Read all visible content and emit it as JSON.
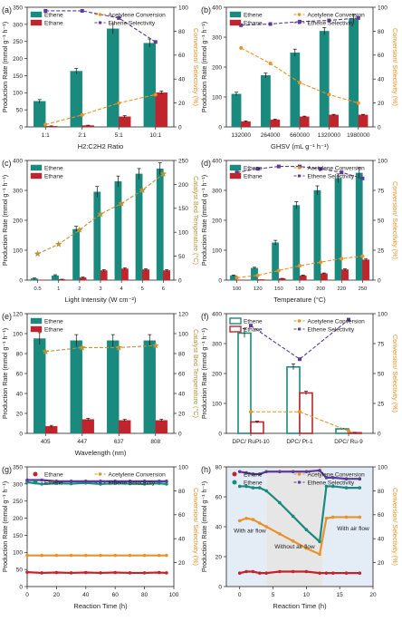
{
  "figure": {
    "colors": {
      "ethene": "#1a8a7e",
      "ethane": "#c0242c",
      "conversion": "#e8922a",
      "selectivity": "#5a3a9a",
      "temp": "#b8943c"
    }
  },
  "chart_data": [
    {
      "id": "a",
      "panel_label": "(a)",
      "type": "bar",
      "categories": [
        "1:1",
        "2:1",
        "5:1",
        "10:1"
      ],
      "xlabel": "H2:C2H2 Ratio",
      "ylabel": "Production Rate (mmol g⁻¹ h⁻¹)",
      "ylabel_right": "Conversion/ Selectivity (%)",
      "right_color": "#e8922a",
      "ylim": [
        0,
        350
      ],
      "yticks": [
        0,
        50,
        100,
        150,
        200,
        250,
        300,
        350
      ],
      "y2lim": [
        0,
        100
      ],
      "y2ticks": [
        0,
        20,
        40,
        60,
        80,
        100
      ],
      "legend": {
        "bars": [
          "Ethene",
          "Ethane"
        ],
        "lines": [
          "Acetylene Conversion",
          "Ethene Selectivity"
        ]
      },
      "series": [
        {
          "name": "Ethene",
          "kind": "bar",
          "values": [
            75,
            163,
            287,
            245
          ],
          "err": [
            5,
            8,
            15,
            12
          ]
        },
        {
          "name": "Ethane",
          "kind": "bar",
          "values": [
            2,
            4,
            30,
            100
          ],
          "err": [
            1,
            1,
            3,
            5
          ]
        },
        {
          "name": "Acetylene Conversion",
          "kind": "line",
          "axis": "right",
          "values": [
            2,
            10,
            20,
            27
          ]
        },
        {
          "name": "Ethene Selectivity",
          "kind": "line",
          "axis": "right",
          "values": [
            97,
            97,
            91,
            71
          ]
        }
      ]
    },
    {
      "id": "b",
      "panel_label": "(b)",
      "type": "bar",
      "categories": [
        "132000",
        "264000",
        "660000",
        "1320000",
        "1980000"
      ],
      "xlabel": "GHSV (mL g⁻¹ h⁻¹)",
      "ylabel": "Production Rate (mmol g⁻¹ h⁻¹)",
      "ylabel_right": "Conversion/ Selectivity (%)",
      "right_color": "#e8922a",
      "ylim": [
        0,
        400
      ],
      "yticks": [
        0,
        100,
        200,
        300,
        400
      ],
      "y2lim": [
        0,
        100
      ],
      "y2ticks": [
        0,
        20,
        40,
        60,
        80,
        100
      ],
      "legend": {
        "bars": [
          "Ethene",
          "Ethane"
        ],
        "lines": [
          "Acetylene Conversion",
          "Ethene Selectivity"
        ]
      },
      "series": [
        {
          "name": "Ethene",
          "kind": "bar",
          "values": [
            110,
            172,
            248,
            320,
            362
          ],
          "err": [
            6,
            8,
            12,
            12,
            14
          ]
        },
        {
          "name": "Ethane",
          "kind": "bar",
          "values": [
            18,
            24,
            34,
            40,
            40
          ],
          "err": [
            2,
            2,
            2,
            2,
            2
          ]
        },
        {
          "name": "Acetylene Conversion",
          "kind": "line",
          "axis": "right",
          "values": [
            66,
            53,
            37,
            27,
            20
          ]
        },
        {
          "name": "Ethene Selectivity",
          "kind": "line",
          "axis": "right",
          "values": [
            85,
            86,
            88,
            89,
            91
          ]
        }
      ]
    },
    {
      "id": "c",
      "panel_label": "(c)",
      "type": "bar",
      "categories": [
        "0.5",
        "1",
        "2",
        "3",
        "4",
        "5",
        "6"
      ],
      "xlabel": "Light Intensity (W cm⁻²)",
      "ylabel": "Production Rate (mmol g⁻¹ h⁻¹)",
      "ylabel_right": "Catalyst Bed Temperature (°C)",
      "right_color": "#b8943c",
      "ylim": [
        0,
        400
      ],
      "yticks": [
        0,
        100,
        200,
        300,
        400
      ],
      "y2lim": [
        0,
        250
      ],
      "y2ticks": [
        0,
        50,
        100,
        150,
        200,
        250
      ],
      "legend": {
        "bars": [
          "Ethene",
          "Ethane"
        ],
        "lines": []
      },
      "series": [
        {
          "name": "Ethene",
          "kind": "bar",
          "values": [
            5,
            15,
            170,
            295,
            330,
            355,
            372
          ],
          "err": [
            2,
            3,
            10,
            18,
            18,
            18,
            20
          ]
        },
        {
          "name": "Ethane",
          "kind": "bar",
          "values": [
            1,
            2,
            8,
            32,
            38,
            35,
            32
          ],
          "err": [
            0,
            1,
            2,
            3,
            3,
            3,
            3
          ]
        },
        {
          "name": "Catalyst Bed Temperature",
          "kind": "line",
          "axis": "right",
          "marker": "star",
          "values": [
            55,
            75,
            105,
            138,
            160,
            188,
            222
          ]
        }
      ]
    },
    {
      "id": "d",
      "panel_label": "(d)",
      "type": "bar",
      "categories": [
        "100",
        "120",
        "150",
        "180",
        "200",
        "220",
        "250"
      ],
      "xlabel": "Temperature (°C)",
      "ylabel": "Production Rate (mmol g⁻¹ h⁻¹)",
      "ylabel_right": "Conversion/ Selectivity (%)",
      "right_color": "#e8922a",
      "ylim": [
        0,
        400
      ],
      "yticks": [
        0,
        100,
        200,
        300,
        400
      ],
      "y2lim": [
        0,
        100
      ],
      "y2ticks": [
        0,
        25,
        50,
        75,
        100
      ],
      "legend": {
        "bars": [
          "Ethene",
          "Ethane"
        ],
        "lines": [
          "Acetylene Conversion",
          "Ethene Selectivity"
        ]
      },
      "series": [
        {
          "name": "Ethene",
          "kind": "bar",
          "values": [
            15,
            40,
            125,
            250,
            300,
            340,
            358
          ],
          "err": [
            2,
            3,
            8,
            12,
            15,
            15,
            18
          ]
        },
        {
          "name": "Ethane",
          "kind": "bar",
          "values": [
            1,
            2,
            5,
            15,
            22,
            35,
            68
          ],
          "err": [
            0,
            0,
            1,
            2,
            2,
            3,
            4
          ]
        },
        {
          "name": "Acetylene Conversion",
          "kind": "line",
          "axis": "right",
          "values": [
            2,
            4,
            8,
            12,
            15,
            18,
            20
          ]
        },
        {
          "name": "Ethene Selectivity",
          "kind": "line",
          "axis": "right",
          "values": [
            90,
            93,
            95,
            95,
            93,
            90,
            85
          ]
        }
      ]
    },
    {
      "id": "e",
      "panel_label": "(e)",
      "type": "bar",
      "categories": [
        "405",
        "447",
        "637",
        "808"
      ],
      "xlabel": "Wavelength (nm)",
      "ylabel": "Production Rate (mmol g⁻¹ h⁻¹)",
      "ylabel_right": "Catalyst Bed Temperature (°C)",
      "right_color": "#b8943c",
      "ylim": [
        0,
        120
      ],
      "yticks": [
        0,
        20,
        40,
        60,
        80,
        100,
        120
      ],
      "y2lim": [
        0,
        120
      ],
      "y2ticks": [
        0,
        20,
        40,
        60,
        80,
        100,
        120
      ],
      "legend": {
        "bars": [
          "Ethene",
          "Ethane"
        ],
        "lines": []
      },
      "series": [
        {
          "name": "Ethene",
          "kind": "bar",
          "values": [
            95,
            93,
            93,
            93
          ],
          "err": [
            6,
            6,
            6,
            6
          ]
        },
        {
          "name": "Ethane",
          "kind": "bar",
          "values": [
            7,
            14,
            13,
            13
          ],
          "err": [
            1,
            1,
            1,
            1
          ]
        },
        {
          "name": "Catalyst Bed Temperature",
          "kind": "line",
          "axis": "right",
          "marker": "star",
          "values": [
            82,
            86,
            86,
            88
          ]
        }
      ]
    },
    {
      "id": "f",
      "panel_label": "(f)",
      "type": "bar",
      "categories": [
        "DPC/ RuPt-10",
        "DPC/ Pt-1",
        "DPC/ Ru-9"
      ],
      "xlabel": "",
      "ylabel": "Production Rate (mmol g⁻¹ h⁻¹)",
      "ylabel_right": "Conversion/ Selectivity (%)",
      "right_color": "#e8922a",
      "ylim": [
        0,
        400
      ],
      "yticks": [
        0,
        100,
        200,
        300,
        400
      ],
      "y2lim": [
        0,
        100
      ],
      "y2ticks": [
        0,
        25,
        50,
        75,
        100
      ],
      "legend": {
        "bars": [
          "Ethene",
          "Ethane"
        ],
        "lines": [
          "Acetylene Conversion",
          "Ethene Selectivity"
        ],
        "open_bars": true
      },
      "series": [
        {
          "name": "Ethene",
          "kind": "bar",
          "values": [
            335,
            222,
            15
          ],
          "err": [
            15,
            10,
            2
          ]
        },
        {
          "name": "Ethane",
          "kind": "bar",
          "values": [
            38,
            135,
            2
          ],
          "err": [
            3,
            6,
            1
          ]
        },
        {
          "name": "Acetylene Conversion",
          "kind": "line",
          "axis": "right",
          "values": [
            18,
            18,
            2
          ]
        },
        {
          "name": "Ethene Selectivity",
          "kind": "line",
          "axis": "right",
          "values": [
            90,
            62,
            95
          ]
        }
      ]
    },
    {
      "id": "g",
      "panel_label": "(g)",
      "type": "line",
      "x": [
        0,
        10,
        20,
        30,
        40,
        50,
        60,
        70,
        80,
        90,
        95
      ],
      "xlim": [
        0,
        100
      ],
      "xticks": [
        0,
        20,
        40,
        60,
        80,
        100
      ],
      "xlabel": "Reaction Time (h)",
      "ylabel": "Production Rate (mmol g⁻¹ h⁻¹)",
      "ylabel_right": "Conversion/ Selectivity (%)",
      "right_color": "#e8922a",
      "ylim": [
        0,
        350
      ],
      "yticks": [
        0,
        50,
        100,
        150,
        200,
        250,
        300,
        350
      ],
      "y2lim": [
        0,
        100
      ],
      "y2ticks": [
        20,
        40,
        60,
        80,
        100
      ],
      "legend": {
        "bars": [
          "Ethane",
          "Ethene"
        ],
        "lines": [
          "Acetylene Conversion",
          "Ethene Selectivity"
        ]
      },
      "series": [
        {
          "name": "Ethane",
          "axis": "left",
          "values": [
            42,
            40,
            41,
            40,
            41,
            40,
            41,
            40,
            40,
            41,
            40
          ]
        },
        {
          "name": "Ethene",
          "axis": "left",
          "values": [
            305,
            300,
            302,
            301,
            303,
            300,
            302,
            301,
            300,
            302,
            300
          ]
        },
        {
          "name": "Acetylene Conversion",
          "axis": "right",
          "values": [
            26,
            26,
            26,
            26,
            26,
            26,
            26,
            26,
            26,
            26,
            26
          ]
        },
        {
          "name": "Ethene Selectivity",
          "axis": "right",
          "values": [
            89,
            89,
            88,
            88,
            88,
            88,
            88,
            88,
            88,
            88,
            88
          ]
        }
      ]
    },
    {
      "id": "h",
      "panel_label": "(h)",
      "type": "line",
      "x": [
        0,
        1,
        2,
        3,
        4,
        6,
        8,
        10,
        12,
        13,
        14,
        16,
        18
      ],
      "xlim": [
        -2,
        20
      ],
      "xticks": [
        0,
        5,
        10,
        15,
        20
      ],
      "xlabel": "Reaction Time (h)",
      "ylabel": "Production Rate (mmol g⁻¹ h⁻¹)",
      "ylabel_right": "Conversion/ Selectivity (%)",
      "right_color": "#e8922a",
      "ylim": [
        0,
        80
      ],
      "yticks": [
        0,
        20,
        40,
        60,
        80
      ],
      "y2lim": [
        0,
        100
      ],
      "y2ticks": [
        20,
        40,
        60,
        80,
        100
      ],
      "shade": [
        4,
        12.5
      ],
      "annotations": [
        "With air flow",
        "Without air flow",
        "With air flow"
      ],
      "legend": {
        "bars": [
          "Ethane",
          "Ethene"
        ],
        "lines": [
          "Acetylene Conversion",
          "Ethene Selectivity"
        ]
      },
      "series": [
        {
          "name": "Ethane",
          "axis": "left",
          "values": [
            9,
            10,
            10,
            9,
            9,
            10,
            10,
            10,
            9,
            9,
            9,
            9,
            9
          ]
        },
        {
          "name": "Ethene",
          "axis": "left",
          "values": [
            67,
            67,
            66,
            66,
            64,
            56,
            47,
            38,
            30,
            67,
            67,
            66,
            66
          ]
        },
        {
          "name": "Acetylene Conversion",
          "axis": "right",
          "values": [
            55,
            57,
            56,
            53,
            50,
            44,
            38,
            32,
            27,
            57,
            58,
            58,
            58
          ]
        },
        {
          "name": "Ethene Selectivity",
          "axis": "right",
          "values": [
            96,
            95,
            94,
            94,
            96,
            96,
            96,
            96,
            97,
            91,
            91,
            90,
            90
          ]
        }
      ]
    }
  ]
}
